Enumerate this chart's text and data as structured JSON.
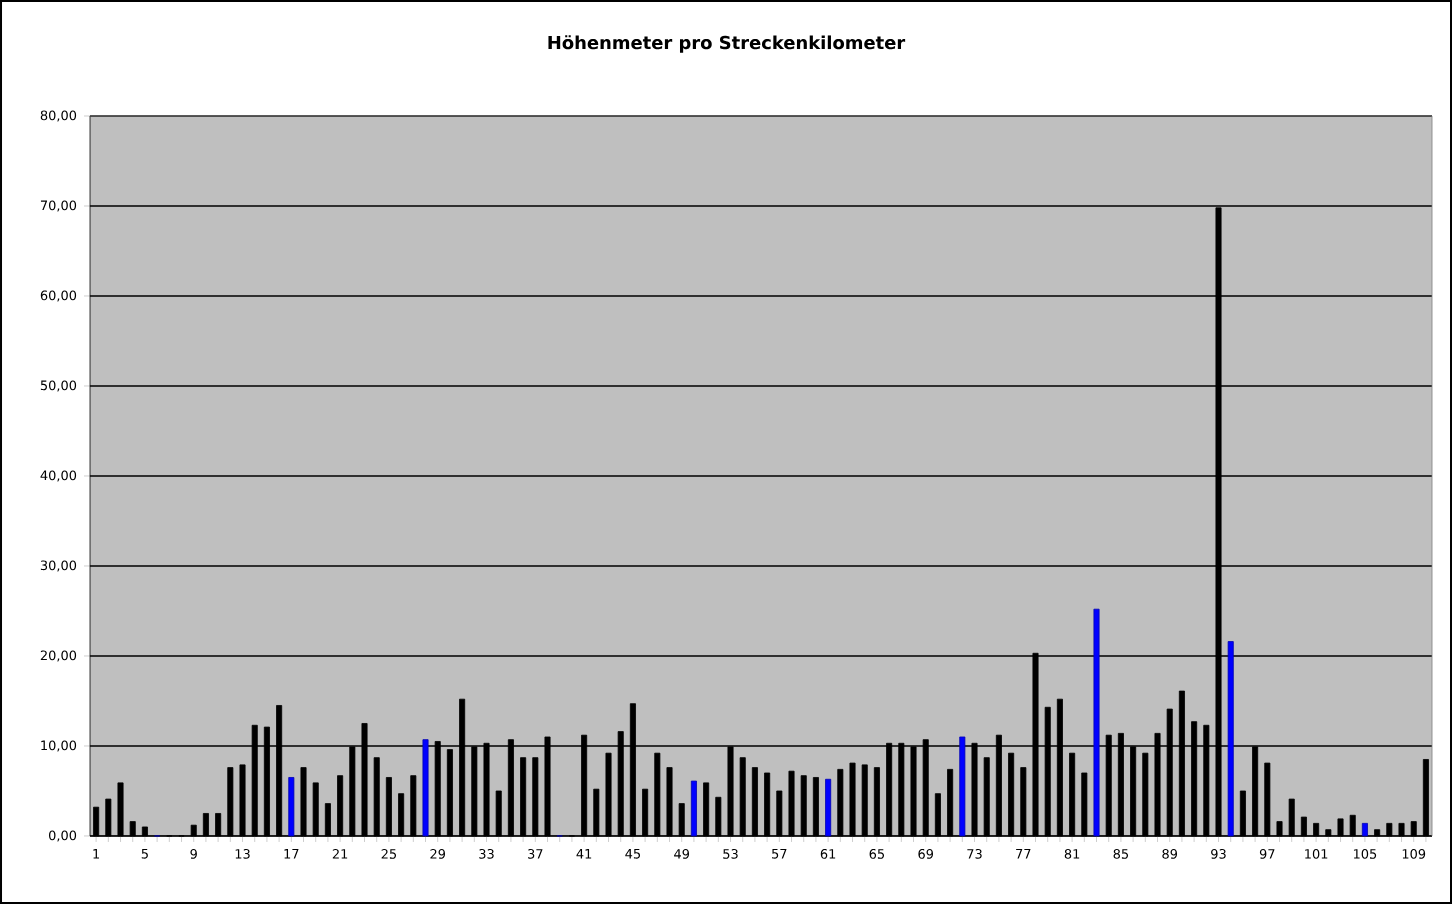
{
  "chart_data": {
    "type": "bar",
    "title": "Höhenmeter pro Streckenkilometer",
    "categories": [
      "1",
      null,
      null,
      null,
      "5",
      null,
      null,
      null,
      "9",
      null,
      null,
      null,
      "13",
      null,
      null,
      null,
      "17",
      null,
      null,
      null,
      "21",
      null,
      null,
      null,
      "25",
      null,
      null,
      null,
      "29",
      null,
      null,
      null,
      "33",
      null,
      null,
      null,
      "37",
      null,
      null,
      null,
      "41",
      null,
      null,
      null,
      "45",
      null,
      null,
      null,
      "49",
      null,
      null,
      null,
      "53",
      null,
      null,
      null,
      "57",
      null,
      null,
      null,
      "61",
      null,
      null,
      null,
      "65",
      null,
      null,
      null,
      "69",
      null,
      null,
      null,
      "73",
      null,
      null,
      null,
      "77",
      null,
      null,
      null,
      "81",
      null,
      null,
      null,
      "85",
      null,
      null,
      null,
      "89",
      null,
      null,
      null,
      "93",
      null,
      null,
      null,
      "97",
      null,
      null,
      null,
      "101",
      null,
      null,
      null,
      "105",
      null,
      null,
      null,
      "109",
      null
    ],
    "values": [
      3.2,
      4.1,
      5.9,
      1.6,
      1.0,
      0,
      0,
      0,
      1.2,
      2.5,
      2.5,
      7.6,
      7.9,
      12.3,
      12.1,
      14.5,
      6.5,
      7.6,
      5.9,
      3.6,
      6.7,
      9.9,
      12.5,
      8.7,
      6.5,
      4.7,
      6.7,
      10.7,
      10.5,
      9.6,
      15.2,
      9.9,
      10.3,
      5.0,
      10.7,
      8.7,
      8.7,
      11.0,
      0,
      0,
      11.2,
      5.2,
      9.2,
      11.6,
      14.7,
      5.2,
      9.2,
      7.6,
      3.6,
      6.1,
      5.9,
      4.3,
      9.9,
      8.7,
      7.6,
      7.0,
      5.0,
      7.2,
      6.7,
      6.5,
      6.3,
      7.4,
      8.1,
      7.9,
      7.6,
      10.3,
      10.3,
      9.9,
      10.7,
      4.7,
      7.4,
      11.0,
      10.3,
      8.7,
      11.2,
      9.2,
      7.6,
      20.3,
      14.3,
      15.2,
      9.2,
      7.0,
      25.2,
      11.2,
      11.4,
      9.9,
      9.2,
      11.4,
      14.1,
      16.1,
      12.7,
      12.3,
      69.8,
      21.6,
      5.0,
      9.9,
      8.1,
      1.6,
      4.1,
      2.1,
      1.4,
      0.7,
      1.9,
      2.3,
      1.4,
      0.7,
      1.4,
      1.4,
      1.6,
      8.5
    ],
    "colors": [
      "#000000",
      "#000000",
      "#000000",
      "#000000",
      "#000000",
      "#0000ff",
      "#000000",
      "#000000",
      "#000000",
      "#000000",
      "#000000",
      "#000000",
      "#000000",
      "#000000",
      "#000000",
      "#000000",
      "#0000ff",
      "#000000",
      "#000000",
      "#000000",
      "#000000",
      "#000000",
      "#000000",
      "#000000",
      "#000000",
      "#000000",
      "#000000",
      "#0000ff",
      "#000000",
      "#000000",
      "#000000",
      "#000000",
      "#000000",
      "#000000",
      "#000000",
      "#000000",
      "#000000",
      "#000000",
      "#0000ff",
      "#000000",
      "#000000",
      "#000000",
      "#000000",
      "#000000",
      "#000000",
      "#000000",
      "#000000",
      "#000000",
      "#000000",
      "#0000ff",
      "#000000",
      "#000000",
      "#000000",
      "#000000",
      "#000000",
      "#000000",
      "#000000",
      "#000000",
      "#000000",
      "#000000",
      "#0000ff",
      "#000000",
      "#000000",
      "#000000",
      "#000000",
      "#000000",
      "#000000",
      "#000000",
      "#000000",
      "#000000",
      "#000000",
      "#0000ff",
      "#000000",
      "#000000",
      "#000000",
      "#000000",
      "#000000",
      "#000000",
      "#000000",
      "#000000",
      "#000000",
      "#000000",
      "#0000ff",
      "#000000",
      "#000000",
      "#000000",
      "#000000",
      "#000000",
      "#000000",
      "#000000",
      "#000000",
      "#000000",
      "#000000",
      "#0000ff",
      "#000000",
      "#000000",
      "#000000",
      "#000000",
      "#000000",
      "#000000",
      "#000000",
      "#000000",
      "#000000",
      "#000000",
      "#0000ff",
      "#000000",
      "#000000",
      "#000000",
      "#000000",
      "#000000"
    ],
    "ylim": [
      0,
      80
    ],
    "yticks": [
      {
        "value": 0,
        "label": "0,00"
      },
      {
        "value": 10,
        "label": "10,00"
      },
      {
        "value": 20,
        "label": "20,00"
      },
      {
        "value": 30,
        "label": "30,00"
      },
      {
        "value": 40,
        "label": "40,00"
      },
      {
        "value": 50,
        "label": "50,00"
      },
      {
        "value": 60,
        "label": "60,00"
      },
      {
        "value": 70,
        "label": "70,00"
      },
      {
        "value": 80,
        "label": "80,00"
      }
    ],
    "grid": "y"
  }
}
